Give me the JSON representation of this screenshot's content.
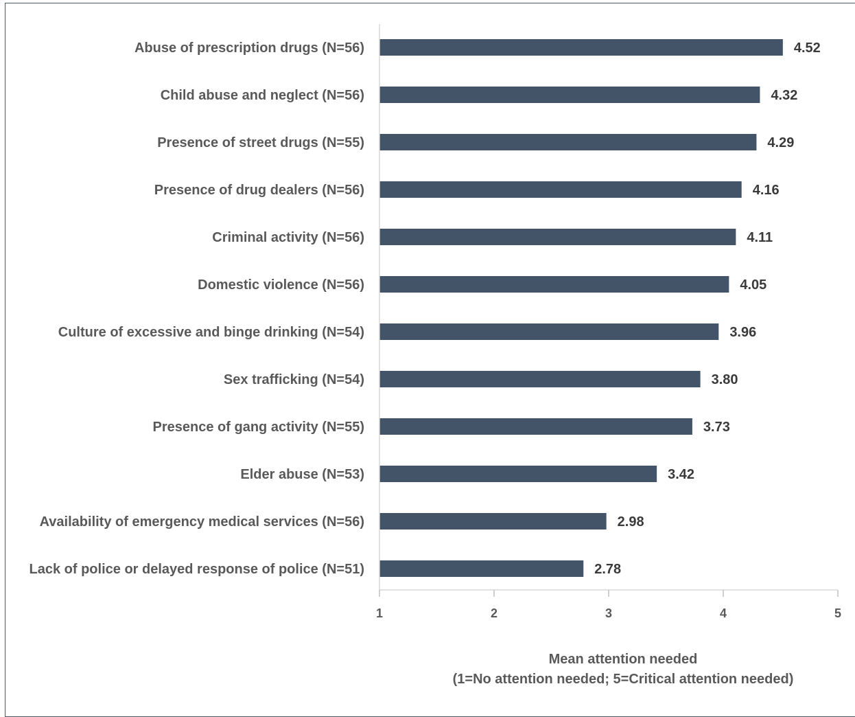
{
  "chart_data": {
    "type": "bar",
    "orientation": "horizontal",
    "categories": [
      "Abuse of prescription drugs (N=56)",
      "Child abuse and neglect (N=56)",
      "Presence of street drugs (N=55)",
      "Presence of drug dealers (N=56)",
      "Criminal activity (N=56)",
      "Domestic violence (N=56)",
      "Culture of excessive and binge drinking (N=54)",
      "Sex trafficking (N=54)",
      "Presence of gang activity (N=55)",
      "Elder abuse (N=53)",
      "Availability of emergency medical services (N=56)",
      "Lack of police or delayed response of police (N=51)"
    ],
    "values": [
      4.52,
      4.32,
      4.29,
      4.16,
      4.11,
      4.05,
      3.96,
      3.8,
      3.73,
      3.42,
      2.98,
      2.78
    ],
    "value_labels": [
      "4.52",
      "4.32",
      "4.29",
      "4.16",
      "4.11",
      "4.05",
      "3.96",
      "3.80",
      "3.73",
      "3.42",
      "2.98",
      "2.78"
    ],
    "xlim": [
      1,
      5
    ],
    "xticks": [
      1,
      2,
      3,
      4,
      5
    ],
    "xlabel_line1": "Mean attention needed",
    "xlabel_line2": "(1=No attention needed; 5=Critical attention needed)",
    "title": "",
    "grid": false,
    "bar_color": "#435368"
  }
}
